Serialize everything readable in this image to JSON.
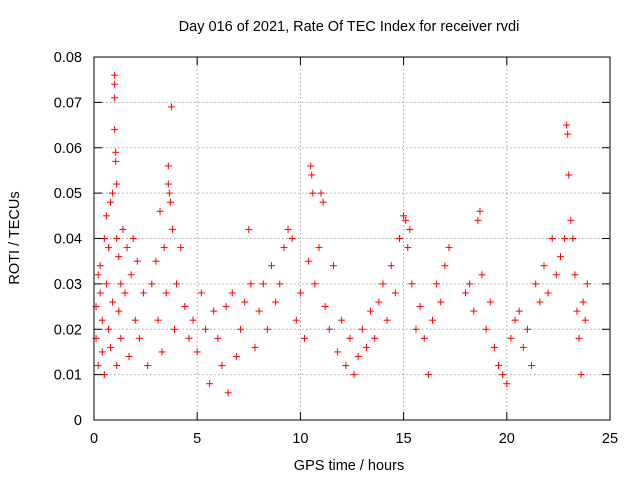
{
  "chart_data": {
    "type": "scatter",
    "title": "Day 016 of 2021, Rate Of TEC Index for receiver rvdi",
    "xlabel": "GPS time / hours",
    "ylabel": "ROTI / TECUs",
    "xlim": [
      0,
      25
    ],
    "ylim": [
      0,
      0.08
    ],
    "x_ticks": [
      "0",
      "5",
      "10",
      "15",
      "20",
      "25"
    ],
    "y_ticks": [
      "0",
      "0.01",
      "0.02",
      "0.03",
      "0.04",
      "0.05",
      "0.06",
      "0.07",
      "0.08"
    ],
    "grid": true,
    "marker": "+",
    "color": "#ff0000",
    "series": [
      {
        "points": [
          [
            0.1,
            0.018
          ],
          [
            0.1,
            0.025
          ],
          [
            0.2,
            0.032
          ],
          [
            0.2,
            0.012
          ],
          [
            0.3,
            0.028
          ],
          [
            0.3,
            0.034
          ],
          [
            0.4,
            0.015
          ],
          [
            0.4,
            0.022
          ],
          [
            0.5,
            0.04
          ],
          [
            0.5,
            0.01
          ],
          [
            0.6,
            0.045
          ],
          [
            0.6,
            0.03
          ],
          [
            0.7,
            0.02
          ],
          [
            0.7,
            0.038
          ],
          [
            0.8,
            0.048
          ],
          [
            0.8,
            0.016
          ],
          [
            0.9,
            0.05
          ],
          [
            0.9,
            0.026
          ],
          [
            1.0,
            0.076
          ],
          [
            1.0,
            0.074
          ],
          [
            1.0,
            0.071
          ],
          [
            1.0,
            0.064
          ],
          [
            1.05,
            0.059
          ],
          [
            1.05,
            0.057
          ],
          [
            1.1,
            0.052
          ],
          [
            1.1,
            0.04
          ],
          [
            1.1,
            0.012
          ],
          [
            1.2,
            0.036
          ],
          [
            1.2,
            0.024
          ],
          [
            1.3,
            0.03
          ],
          [
            1.3,
            0.018
          ],
          [
            1.4,
            0.042
          ],
          [
            1.5,
            0.028
          ],
          [
            1.6,
            0.038
          ],
          [
            1.7,
            0.014
          ],
          [
            1.8,
            0.032
          ],
          [
            1.9,
            0.04
          ],
          [
            2.0,
            0.022
          ],
          [
            2.1,
            0.035
          ],
          [
            2.2,
            0.018
          ],
          [
            2.4,
            0.028
          ],
          [
            2.6,
            0.012
          ],
          [
            2.8,
            0.03
          ],
          [
            3.0,
            0.035
          ],
          [
            3.1,
            0.022
          ],
          [
            3.2,
            0.046
          ],
          [
            3.3,
            0.015
          ],
          [
            3.4,
            0.038
          ],
          [
            3.5,
            0.028
          ],
          [
            3.6,
            0.056
          ],
          [
            3.6,
            0.052
          ],
          [
            3.65,
            0.05
          ],
          [
            3.7,
            0.048
          ],
          [
            3.75,
            0.069
          ],
          [
            3.8,
            0.042
          ],
          [
            3.9,
            0.02
          ],
          [
            4.0,
            0.03
          ],
          [
            4.2,
            0.038
          ],
          [
            4.4,
            0.025
          ],
          [
            4.6,
            0.018
          ],
          [
            4.8,
            0.022
          ],
          [
            5.0,
            0.015
          ],
          [
            5.2,
            0.028
          ],
          [
            5.4,
            0.02
          ],
          [
            5.6,
            0.008
          ],
          [
            5.8,
            0.024
          ],
          [
            6.0,
            0.018
          ],
          [
            6.2,
            0.012
          ],
          [
            6.4,
            0.025
          ],
          [
            6.5,
            0.006
          ],
          [
            6.7,
            0.028
          ],
          [
            6.9,
            0.014
          ],
          [
            7.1,
            0.02
          ],
          [
            7.3,
            0.026
          ],
          [
            7.5,
            0.042
          ],
          [
            7.6,
            0.03
          ],
          [
            7.8,
            0.016
          ],
          [
            8.0,
            0.024
          ],
          [
            8.2,
            0.03
          ],
          [
            8.4,
            0.02
          ],
          [
            8.6,
            0.034
          ],
          [
            8.8,
            0.026
          ],
          [
            9.0,
            0.03
          ],
          [
            9.2,
            0.038
          ],
          [
            9.4,
            0.042
          ],
          [
            9.6,
            0.04
          ],
          [
            9.8,
            0.022
          ],
          [
            10.0,
            0.028
          ],
          [
            10.2,
            0.018
          ],
          [
            10.4,
            0.035
          ],
          [
            10.5,
            0.056
          ],
          [
            10.55,
            0.054
          ],
          [
            10.6,
            0.05
          ],
          [
            10.7,
            0.03
          ],
          [
            10.9,
            0.038
          ],
          [
            11.0,
            0.05
          ],
          [
            11.1,
            0.048
          ],
          [
            11.2,
            0.025
          ],
          [
            11.4,
            0.02
          ],
          [
            11.6,
            0.034
          ],
          [
            11.8,
            0.015
          ],
          [
            12.0,
            0.022
          ],
          [
            12.2,
            0.012
          ],
          [
            12.4,
            0.018
          ],
          [
            12.6,
            0.01
          ],
          [
            12.8,
            0.014
          ],
          [
            13.0,
            0.02
          ],
          [
            13.2,
            0.016
          ],
          [
            13.4,
            0.024
          ],
          [
            13.6,
            0.018
          ],
          [
            13.8,
            0.026
          ],
          [
            14.0,
            0.03
          ],
          [
            14.2,
            0.022
          ],
          [
            14.4,
            0.034
          ],
          [
            14.6,
            0.028
          ],
          [
            14.8,
            0.04
          ],
          [
            15.0,
            0.045
          ],
          [
            15.1,
            0.044
          ],
          [
            15.2,
            0.038
          ],
          [
            15.3,
            0.042
          ],
          [
            15.4,
            0.03
          ],
          [
            15.6,
            0.02
          ],
          [
            15.8,
            0.025
          ],
          [
            16.0,
            0.018
          ],
          [
            16.2,
            0.01
          ],
          [
            16.4,
            0.022
          ],
          [
            16.6,
            0.03
          ],
          [
            16.8,
            0.026
          ],
          [
            17.0,
            0.034
          ],
          [
            17.2,
            0.038
          ],
          [
            18.0,
            0.028
          ],
          [
            18.2,
            0.03
          ],
          [
            18.4,
            0.024
          ],
          [
            18.6,
            0.044
          ],
          [
            18.7,
            0.046
          ],
          [
            18.8,
            0.032
          ],
          [
            19.0,
            0.02
          ],
          [
            19.2,
            0.026
          ],
          [
            19.4,
            0.016
          ],
          [
            19.6,
            0.012
          ],
          [
            19.8,
            0.01
          ],
          [
            20.0,
            0.008
          ],
          [
            20.2,
            0.018
          ],
          [
            20.4,
            0.022
          ],
          [
            20.6,
            0.024
          ],
          [
            20.8,
            0.016
          ],
          [
            21.0,
            0.02
          ],
          [
            21.2,
            0.012
          ],
          [
            21.4,
            0.03
          ],
          [
            21.6,
            0.026
          ],
          [
            21.8,
            0.034
          ],
          [
            22.0,
            0.028
          ],
          [
            22.2,
            0.04
          ],
          [
            22.4,
            0.032
          ],
          [
            22.6,
            0.036
          ],
          [
            22.8,
            0.04
          ],
          [
            22.9,
            0.065
          ],
          [
            22.95,
            0.063
          ],
          [
            23.0,
            0.054
          ],
          [
            23.1,
            0.044
          ],
          [
            23.2,
            0.04
          ],
          [
            23.3,
            0.032
          ],
          [
            23.4,
            0.024
          ],
          [
            23.5,
            0.018
          ],
          [
            23.6,
            0.01
          ],
          [
            23.7,
            0.026
          ],
          [
            23.8,
            0.022
          ],
          [
            23.9,
            0.03
          ]
        ]
      }
    ]
  }
}
